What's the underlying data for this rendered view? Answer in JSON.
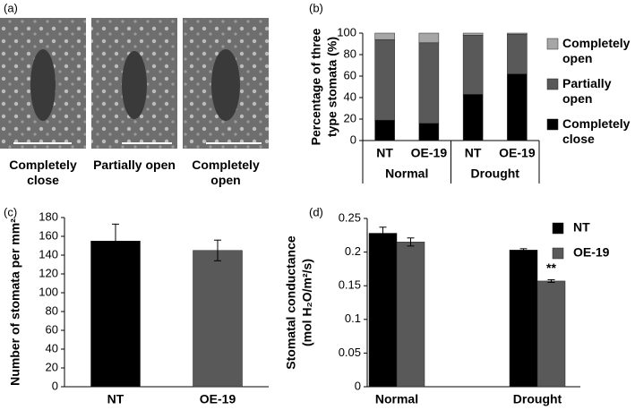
{
  "images": {
    "panel_label": "(a)",
    "captions": [
      "Completely close",
      "Partially open",
      "Completely open"
    ]
  },
  "chart_data": [
    {
      "type": "stacked_bar",
      "panel_label": "(b)",
      "ylabel": [
        "Percentage of three",
        "type stomata (%)"
      ],
      "categories": [
        "NT",
        "OE-19",
        "NT",
        "OE-19"
      ],
      "groups": [
        "Normal",
        "Drought"
      ],
      "series": [
        {
          "name": "Completely close",
          "color": "#000000",
          "values": [
            19,
            16,
            43,
            62
          ]
        },
        {
          "name": "Partially open",
          "color": "#595959",
          "values": [
            75,
            75,
            55,
            37
          ]
        },
        {
          "name": "Completely open",
          "color": "#a6a6a6",
          "values": [
            6,
            9,
            2,
            1
          ]
        }
      ],
      "ylim": [
        0,
        100
      ],
      "yticks": [
        0,
        20,
        40,
        60,
        80,
        100
      ]
    },
    {
      "type": "bar",
      "panel_label": "(c)",
      "ylabel": [
        "Number of stomata per mm²"
      ],
      "categories": [
        "NT",
        "OE-19"
      ],
      "values": [
        155,
        145
      ],
      "errors": [
        18,
        11
      ],
      "colors": [
        "#000000",
        "#595959"
      ],
      "ylim": [
        0,
        180
      ],
      "yticks": [
        0,
        20,
        40,
        60,
        80,
        100,
        120,
        140,
        160,
        180
      ]
    },
    {
      "type": "grouped_bar",
      "panel_label": "(d)",
      "ylabel": [
        "Stomatal conductance",
        "(mol H₂O/m²/s)"
      ],
      "categories": [
        "Normal",
        "Drought"
      ],
      "series": [
        {
          "name": "NT",
          "color": "#000000",
          "values": [
            0.228,
            0.203
          ],
          "errors": [
            0.009,
            0.002
          ]
        },
        {
          "name": "OE-19",
          "color": "#595959",
          "values": [
            0.215,
            0.157
          ],
          "errors": [
            0.006,
            0.002
          ]
        }
      ],
      "annotation": "**",
      "ylim": [
        0,
        0.25
      ],
      "yticks": [
        0,
        0.05,
        0.1,
        0.15,
        0.2,
        0.25
      ]
    }
  ]
}
